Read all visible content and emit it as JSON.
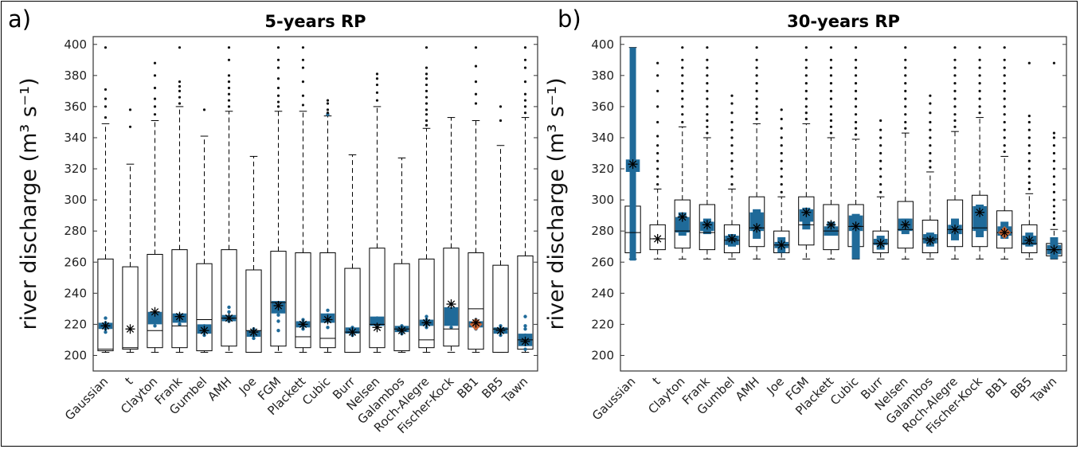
{
  "colors": {
    "box": "#000000",
    "blue": "#1f6a99",
    "orange": "#cc6633",
    "mean_marker": "#000000"
  },
  "chart_data": [
    {
      "panel": "a)",
      "type": "boxplot",
      "title": "5-years RP",
      "ylabel": "river discharge (m³ s⁻¹)",
      "ylim": [
        190,
        405
      ],
      "yticks": [
        200,
        220,
        240,
        260,
        280,
        300,
        320,
        340,
        360,
        380,
        400
      ],
      "categories": [
        "Gaussian",
        "t",
        "Clayton",
        "Frank",
        "Gumbel",
        "AMH",
        "Joe",
        "FGM",
        "Plackett",
        "Cubic",
        "Burr",
        "Nelsen",
        "Galambos",
        "Roch-Alegre",
        "Fischer-Kock",
        "BB1",
        "BB5",
        "Tawn"
      ],
      "boxes": [
        {
          "low": 202,
          "q1": 203,
          "median": 204,
          "q3": 262,
          "high": 349,
          "outliers": [
            353,
            360,
            365,
            371,
            398
          ]
        },
        {
          "low": 202,
          "q1": 204,
          "median": 205,
          "q3": 257,
          "high": 323,
          "outliers": [
            347,
            358
          ]
        },
        {
          "low": 202,
          "q1": 205,
          "median": 216,
          "q3": 265,
          "high": 351,
          "outliers": [
            355,
            360,
            365,
            372,
            380,
            388
          ]
        },
        {
          "low": 202,
          "q1": 205,
          "median": 219,
          "q3": 268,
          "high": 360,
          "outliers": [
            362,
            366,
            370,
            373,
            376,
            398
          ]
        },
        {
          "low": 202,
          "q1": 203,
          "median": 223,
          "q3": 259,
          "high": 341,
          "outliers": [
            358
          ]
        },
        {
          "low": 202,
          "q1": 206,
          "median": 224,
          "q3": 268,
          "high": 357,
          "outliers": [
            360,
            364,
            368,
            372,
            376,
            380,
            390,
            398
          ]
        },
        {
          "low": 202,
          "q1": 202,
          "median": 216,
          "q3": 255,
          "high": 328,
          "outliers": []
        },
        {
          "low": 202,
          "q1": 206,
          "median": 234,
          "q3": 267,
          "high": 357,
          "outliers": [
            360,
            363,
            367,
            372,
            378,
            385,
            390,
            398
          ]
        },
        {
          "low": 202,
          "q1": 205,
          "median": 212,
          "q3": 266,
          "high": 357,
          "outliers": [
            361,
            367,
            376,
            385,
            390,
            398
          ]
        },
        {
          "low": 202,
          "q1": 205,
          "median": 211,
          "q3": 266,
          "high": 354,
          "outliers": [
            356,
            358,
            362,
            364
          ]
        },
        {
          "low": 202,
          "q1": 202,
          "median": 215,
          "q3": 256,
          "high": 329,
          "outliers": []
        },
        {
          "low": 202,
          "q1": 205,
          "median": 220,
          "q3": 269,
          "high": 360,
          "outliers": [
            364,
            369,
            374,
            378,
            381
          ]
        },
        {
          "low": 202,
          "q1": 203,
          "median": 217,
          "q3": 259,
          "high": 327,
          "outliers": []
        },
        {
          "low": 202,
          "q1": 205,
          "median": 210,
          "q3": 262,
          "high": 346,
          "outliers": [
            348,
            351,
            355,
            358,
            362,
            366,
            370,
            374,
            378,
            381,
            385,
            398
          ]
        },
        {
          "low": 202,
          "q1": 206,
          "median": 217,
          "q3": 269,
          "high": 353,
          "outliers": []
        },
        {
          "low": 202,
          "q1": 204,
          "median": 230,
          "q3": 266,
          "high": 351,
          "outliers": [
            362,
            368,
            376,
            386,
            398
          ]
        },
        {
          "low": 202,
          "q1": 202,
          "median": 217,
          "q3": 258,
          "high": 335,
          "outliers": [
            351,
            360
          ]
        },
        {
          "low": 202,
          "q1": 204,
          "median": 210,
          "q3": 264,
          "high": 353,
          "outliers": [
            356,
            360,
            364,
            368,
            376,
            385,
            390,
            398
          ]
        }
      ],
      "means": [
        219,
        217,
        228,
        225,
        216,
        224,
        215,
        232,
        220,
        223,
        215,
        218,
        216,
        221,
        233,
        221,
        216,
        209
      ],
      "blue_center": [
        219,
        null,
        224,
        224,
        217,
        224,
        214,
        231,
        220,
        224,
        216,
        222,
        217,
        221,
        225,
        220,
        216,
        210
      ],
      "blue_halfwidth": [
        2,
        0,
        4,
        3,
        3,
        2,
        2,
        4,
        2,
        3,
        2,
        3,
        2,
        2,
        6,
        2,
        2,
        4
      ],
      "blue_scatter": [
        [
          215,
          217,
          221,
          224
        ],
        [],
        [
          219,
          222,
          226
        ],
        [
          220,
          222
        ],
        [
          213,
          219
        ],
        [
          222,
          228,
          231
        ],
        [
          211,
          217
        ],
        [
          216,
          222,
          226,
          228
        ],
        [
          217,
          223
        ],
        [
          218,
          226,
          229,
          355
        ],
        [
          213,
          218
        ],
        [
          219,
          224
        ],
        [
          214,
          219
        ],
        [
          218,
          223,
          225
        ],
        [
          218,
          228,
          233
        ],
        [
          217,
          223
        ],
        [
          213,
          219
        ],
        [
          204,
          207,
          213,
          217,
          219,
          225
        ]
      ],
      "highlight": {
        "index": 15,
        "value": 220,
        "color_key": "orange"
      }
    },
    {
      "panel": "b)",
      "type": "boxplot",
      "title": "30-years RP",
      "ylabel": "river discharge (m³ s⁻¹)",
      "ylim": [
        190,
        405
      ],
      "yticks": [
        200,
        220,
        240,
        260,
        280,
        300,
        320,
        340,
        360,
        380,
        400
      ],
      "categories": [
        "Gaussian",
        "t",
        "Clayton",
        "Frank",
        "Gumbel",
        "AMH",
        "Joe",
        "FGM",
        "Plackett",
        "Cubic",
        "Burr",
        "Nelsen",
        "Galambos",
        "Roch-Alegre",
        "Fischer-Kock",
        "BB1",
        "BB5",
        "Tawn"
      ],
      "boxes": [
        {
          "low": 262,
          "q1": 266,
          "median": 279,
          "q3": 296,
          "high": 398,
          "outliers": []
        },
        {
          "low": 262,
          "q1": 268,
          "median": 275,
          "q3": 284,
          "high": 307,
          "outliers": [
            310,
            315,
            320,
            325,
            330,
            335,
            341,
            350,
            360,
            370,
            380,
            388
          ]
        },
        {
          "low": 262,
          "q1": 269,
          "median": 280,
          "q3": 300,
          "high": 347,
          "outliers": [
            350,
            355,
            360,
            365,
            370,
            375,
            380,
            385,
            390,
            398
          ]
        },
        {
          "low": 262,
          "q1": 268,
          "median": 279,
          "q3": 297,
          "high": 340,
          "outliers": [
            343,
            347,
            351,
            355,
            360,
            365,
            370,
            375,
            380,
            385,
            390,
            398
          ]
        },
        {
          "low": 262,
          "q1": 266,
          "median": 274,
          "q3": 284,
          "high": 307,
          "outliers": [
            310,
            315,
            320,
            325,
            330,
            335,
            340,
            345,
            350,
            356,
            362,
            367
          ]
        },
        {
          "low": 262,
          "q1": 270,
          "median": 282,
          "q3": 302,
          "high": 349,
          "outliers": [
            352,
            356,
            360,
            365,
            370,
            375,
            380,
            385,
            390,
            398
          ]
        },
        {
          "low": 262,
          "q1": 266,
          "median": 271,
          "q3": 280,
          "high": 302,
          "outliers": [
            305,
            310,
            315,
            320,
            325,
            330,
            335,
            340,
            346,
            352,
            358
          ]
        },
        {
          "low": 262,
          "q1": 271,
          "median": 284,
          "q3": 302,
          "high": 349,
          "outliers": [
            352,
            356,
            360,
            365,
            370,
            375,
            380,
            385,
            390,
            398
          ]
        },
        {
          "low": 262,
          "q1": 268,
          "median": 280,
          "q3": 297,
          "high": 340,
          "outliers": [
            343,
            347,
            351,
            355,
            360,
            365,
            370,
            375,
            380,
            385,
            390,
            398
          ]
        },
        {
          "low": 262,
          "q1": 270,
          "median": 283,
          "q3": 297,
          "high": 339,
          "outliers": [
            342,
            346,
            350,
            355,
            360,
            365,
            370,
            375,
            380,
            385,
            390,
            398
          ]
        },
        {
          "low": 262,
          "q1": 266,
          "median": 272,
          "q3": 280,
          "high": 302,
          "outliers": [
            305,
            310,
            315,
            320,
            325,
            330,
            335,
            340,
            345,
            351
          ]
        },
        {
          "low": 262,
          "q1": 269,
          "median": 281,
          "q3": 299,
          "high": 343,
          "outliers": [
            346,
            350,
            355,
            360,
            365,
            370,
            375,
            380,
            385,
            390,
            398
          ]
        },
        {
          "low": 262,
          "q1": 266,
          "median": 275,
          "q3": 287,
          "high": 318,
          "outliers": [
            321,
            325,
            330,
            335,
            340,
            345,
            350,
            356,
            362,
            367
          ]
        },
        {
          "low": 262,
          "q1": 270,
          "median": 281,
          "q3": 300,
          "high": 344,
          "outliers": [
            347,
            351,
            355,
            360,
            365,
            370,
            375,
            380,
            385,
            390,
            398
          ]
        },
        {
          "low": 262,
          "q1": 270,
          "median": 282,
          "q3": 303,
          "high": 353,
          "outliers": [
            356,
            360,
            365,
            370,
            375,
            380,
            385,
            390,
            398
          ]
        },
        {
          "low": 262,
          "q1": 269,
          "median": 279,
          "q3": 293,
          "high": 328,
          "outliers": [
            331,
            335,
            340,
            345,
            350,
            355,
            360,
            365,
            370,
            375,
            380,
            385,
            390,
            398
          ]
        },
        {
          "low": 262,
          "q1": 266,
          "median": 272,
          "q3": 284,
          "high": 304,
          "outliers": [
            307,
            311,
            315,
            320,
            325,
            330,
            335,
            340,
            345,
            350,
            354,
            388
          ]
        },
        {
          "low": 262,
          "q1": 264,
          "median": 268,
          "q3": 272,
          "high": 281,
          "outliers": [
            284,
            288,
            292,
            296,
            300,
            305,
            310,
            315,
            320,
            325,
            330,
            335,
            340,
            343,
            388
          ]
        }
      ],
      "means": [
        323,
        275,
        289,
        284,
        275,
        282,
        271,
        292,
        284,
        283,
        272,
        284,
        274,
        281,
        292,
        279,
        274,
        268
      ],
      "blue_center": [
        322,
        null,
        284,
        283,
        274,
        286,
        271,
        290,
        280,
        285,
        273,
        284,
        275,
        281,
        288,
        280,
        274,
        268
      ],
      "blue_halfwidth": [
        4,
        0,
        5,
        3,
        3,
        6,
        2,
        4,
        3,
        5,
        2,
        4,
        3,
        3,
        8,
        3,
        3,
        3
      ],
      "blue_range": [
        [
          261,
          398
        ],
        null,
        [
          277,
          292
        ],
        [
          278,
          288
        ],
        [
          270,
          278
        ],
        [
          275,
          294
        ],
        [
          266,
          276
        ],
        [
          281,
          295
        ],
        [
          277,
          286
        ],
        [
          262,
          291
        ],
        [
          268,
          277
        ],
        [
          278,
          288
        ],
        [
          270,
          279
        ],
        [
          274,
          288
        ],
        [
          276,
          297
        ],
        [
          275,
          286
        ],
        [
          270,
          279
        ],
        [
          262,
          276
        ]
      ],
      "highlight": {
        "index": 15,
        "value": 279,
        "color_key": "orange"
      }
    }
  ]
}
